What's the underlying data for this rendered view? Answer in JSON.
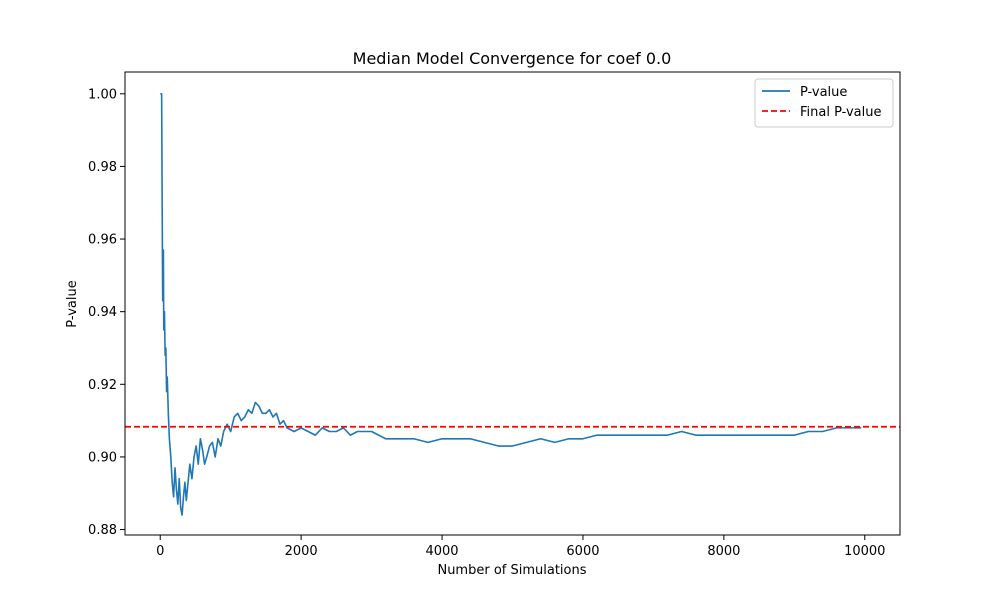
{
  "chart_data": {
    "type": "line",
    "title": "Median Model Convergence for coef 0.0",
    "xlabel": "Number of Simulations",
    "ylabel": "P-value",
    "xlim": [
      -500,
      10500
    ],
    "ylim": [
      0.8785,
      1.006
    ],
    "x_ticks": [
      0,
      2000,
      4000,
      6000,
      8000,
      10000
    ],
    "x_tick_labels": [
      "0",
      "2000",
      "4000",
      "6000",
      "8000",
      "10000"
    ],
    "y_ticks": [
      0.88,
      0.9,
      0.92,
      0.94,
      0.96,
      0.98,
      1.0
    ],
    "y_tick_labels": [
      "0.88",
      "0.90",
      "0.92",
      "0.94",
      "0.96",
      "0.98",
      "1.00"
    ],
    "grid": false,
    "legend_placement": "top-right",
    "series": [
      {
        "name": "P-value",
        "style": "solid",
        "color": "#1f77b4",
        "x": [
          1,
          20,
          30,
          35,
          40,
          45,
          50,
          60,
          70,
          80,
          90,
          100,
          115,
          130,
          150,
          170,
          190,
          210,
          230,
          250,
          270,
          290,
          310,
          330,
          350,
          370,
          390,
          420,
          450,
          480,
          510,
          540,
          570,
          600,
          630,
          660,
          700,
          740,
          780,
          820,
          860,
          900,
          950,
          1000,
          1050,
          1100,
          1150,
          1200,
          1250,
          1300,
          1350,
          1400,
          1450,
          1500,
          1550,
          1600,
          1650,
          1700,
          1750,
          1800,
          1900,
          2000,
          2100,
          2200,
          2300,
          2400,
          2500,
          2600,
          2700,
          2800,
          2900,
          3000,
          3100,
          3200,
          3400,
          3600,
          3800,
          4000,
          4200,
          4400,
          4600,
          4800,
          5000,
          5200,
          5400,
          5600,
          5800,
          6000,
          6200,
          6400,
          6600,
          6800,
          7000,
          7200,
          7400,
          7600,
          7800,
          8000,
          8200,
          8400,
          8600,
          8800,
          9000,
          9200,
          9400,
          9600,
          9800,
          9950
        ],
        "values": [
          1.0,
          1.0,
          0.96,
          0.943,
          0.952,
          0.957,
          0.935,
          0.94,
          0.928,
          0.93,
          0.918,
          0.922,
          0.912,
          0.905,
          0.9,
          0.893,
          0.889,
          0.897,
          0.891,
          0.887,
          0.894,
          0.886,
          0.884,
          0.889,
          0.893,
          0.888,
          0.892,
          0.898,
          0.894,
          0.9,
          0.903,
          0.898,
          0.905,
          0.902,
          0.898,
          0.9,
          0.903,
          0.904,
          0.9,
          0.905,
          0.903,
          0.907,
          0.909,
          0.907,
          0.911,
          0.912,
          0.91,
          0.911,
          0.913,
          0.912,
          0.915,
          0.914,
          0.912,
          0.912,
          0.913,
          0.911,
          0.912,
          0.909,
          0.91,
          0.908,
          0.907,
          0.908,
          0.907,
          0.906,
          0.908,
          0.907,
          0.907,
          0.908,
          0.906,
          0.907,
          0.907,
          0.907,
          0.906,
          0.905,
          0.905,
          0.905,
          0.904,
          0.905,
          0.905,
          0.905,
          0.904,
          0.903,
          0.903,
          0.904,
          0.905,
          0.904,
          0.905,
          0.905,
          0.906,
          0.906,
          0.906,
          0.906,
          0.906,
          0.906,
          0.907,
          0.906,
          0.906,
          0.906,
          0.906,
          0.906,
          0.906,
          0.906,
          0.906,
          0.907,
          0.907,
          0.908,
          0.908,
          0.908
        ]
      },
      {
        "name": "Final P-value",
        "style": "dashed",
        "color": "#ff0000",
        "constant_y": 0.9083
      }
    ]
  }
}
